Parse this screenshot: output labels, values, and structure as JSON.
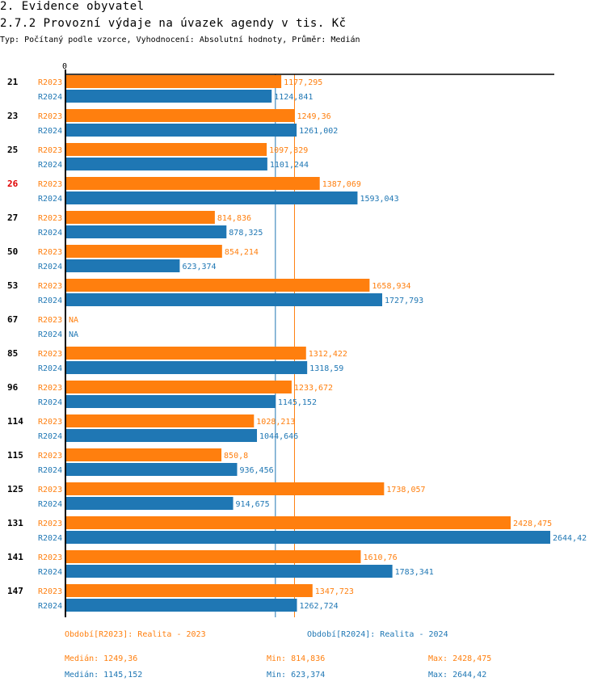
{
  "header": {
    "section": "2. Evidence obyvatel",
    "title": "2.7.2 Provozní výdaje na úvazek agendy v tis. Kč",
    "subtitle": "Typ: Počítaný podle vzorce, Vyhodnocení: Absolutní hodnoty, Průměr: Medián"
  },
  "colors": {
    "R2023": "#ff7f0e",
    "R2024": "#1f77b4",
    "highlight": "#e00000",
    "axis": "#000000"
  },
  "chart_data": {
    "type": "bar",
    "orientation": "horizontal",
    "title": "2.7.2 Provozní výdaje na úvazek agendy v tis. Kč",
    "x_tick_labels": [
      "0"
    ],
    "categories": [
      "21",
      "23",
      "25",
      "26",
      "27",
      "50",
      "53",
      "67",
      "85",
      "96",
      "114",
      "115",
      "125",
      "131",
      "141",
      "147"
    ],
    "highlighted_category": "26",
    "series": [
      {
        "name": "R2023",
        "values": [
          1177.295,
          1249.36,
          1097.829,
          1387.069,
          814.836,
          854.214,
          1658.934,
          null,
          1312.422,
          1233.672,
          1028.213,
          850.8,
          1738.057,
          2428.475,
          1610.76,
          1347.723
        ],
        "labels": [
          "1177,295",
          "1249,36",
          "1097,829",
          "1387,069",
          "814,836",
          "854,214",
          "1658,934",
          "NA",
          "1312,422",
          "1233,672",
          "1028,213",
          "850,8",
          "1738,057",
          "2428,475",
          "1610,76",
          "1347,723"
        ]
      },
      {
        "name": "R2024",
        "values": [
          1124.841,
          1261.002,
          1101.244,
          1593.043,
          878.325,
          623.374,
          1727.793,
          null,
          1318.59,
          1145.152,
          1044.646,
          936.456,
          914.675,
          2644.42,
          1783.341,
          1262.724
        ],
        "labels": [
          "1124,841",
          "1261,002",
          "1101,244",
          "1593,043",
          "878,325",
          "623,374",
          "1727,793",
          "NA",
          "1318,59",
          "1145,152",
          "1044,646",
          "936,456",
          "914,675",
          "2644,42",
          "1783,341",
          "1262,724"
        ]
      }
    ],
    "reference_lines": [
      {
        "series": "R2023",
        "type": "median",
        "value": 1249.36
      },
      {
        "series": "R2024",
        "type": "median",
        "value": 1145.152
      }
    ],
    "xlim": [
      0,
      2660
    ]
  },
  "legend": {
    "R2023": "Období[R2023]: Realita - 2023",
    "R2024": "Období[R2024]: Realita - 2024"
  },
  "stats": {
    "R2023": {
      "median": "Medián: 1249,36",
      "min": "Min: 814,836",
      "max": "Max: 2428,475"
    },
    "R2024": {
      "median": "Medián: 1145,152",
      "min": "Min: 623,374",
      "max": "Max: 2644,42"
    }
  }
}
